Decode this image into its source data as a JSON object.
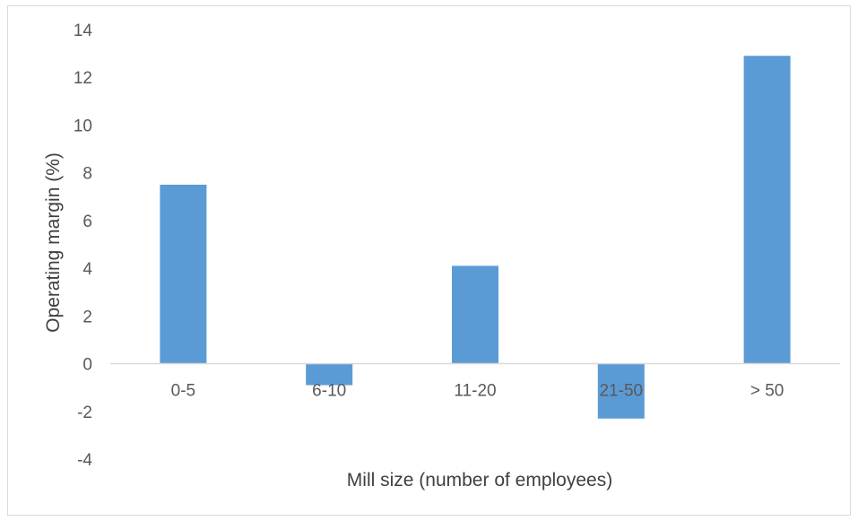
{
  "chart_data": {
    "type": "bar",
    "categories": [
      "0-5",
      "6-10",
      "11-20",
      "21-50",
      "> 50"
    ],
    "values": [
      7.5,
      -0.9,
      4.1,
      -2.3,
      12.9
    ],
    "xlabel": "Mill size (number of employees)",
    "ylabel": "Operating margin (%)",
    "ylim": [
      -4,
      14
    ],
    "yticks": [
      "-4",
      "-2",
      "0",
      "2",
      "4",
      "6",
      "8",
      "10",
      "12",
      "14"
    ],
    "grid": false,
    "legend": "none",
    "bar_color": "#5b9bd5",
    "axis_color": "#d9d9d9"
  }
}
